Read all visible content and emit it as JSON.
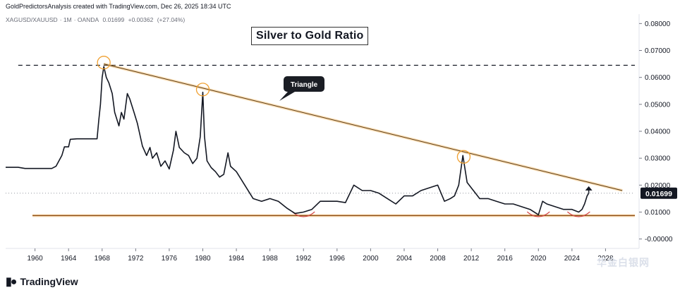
{
  "header": {
    "credit": "GoldPredictorsAnalysis created with TradingView.com, Dec 26, 2025 18:34 UTC"
  },
  "symbol_info": {
    "symbol": "XAGUSD/XAUUSD",
    "interval": "1M",
    "source": "OANDA",
    "price": "0.01699",
    "change": "+0.00362",
    "change_pct": "(+27.04%)"
  },
  "footer": {
    "brand": "TradingView",
    "watermark": "华金白银网"
  },
  "colors": {
    "price_line": "#131722",
    "trend_line": "#f0a030",
    "support_line": "#8a4a12",
    "highlight_circle": "#f0a030",
    "bottom_arc": "#d04040",
    "price_badge_bg": "#131722",
    "grid": "#e0e3eb"
  },
  "chart_data": {
    "type": "line",
    "title": "Silver to Gold Ratio",
    "xlabel": "",
    "ylabel": "",
    "xlim": [
      1956.5,
      2032.0
    ],
    "ylim": [
      -0.0035,
      0.0835
    ],
    "x_ticks": [
      1960,
      1964,
      1968,
      1972,
      1976,
      1980,
      1984,
      1988,
      1992,
      1996,
      2000,
      2004,
      2008,
      2012,
      2016,
      2020,
      2024,
      2028
    ],
    "y_ticks": [
      {
        "value": 0.08,
        "label": "0.08000"
      },
      {
        "value": 0.07,
        "label": "0.07000"
      },
      {
        "value": 0.06,
        "label": "0.06000"
      },
      {
        "value": 0.05,
        "label": "0.05000"
      },
      {
        "value": 0.04,
        "label": "0.04000"
      },
      {
        "value": 0.03,
        "label": "0.03000"
      },
      {
        "value": 0.02,
        "label": "0.02000"
      },
      {
        "value": 0.01,
        "label": "0.01000"
      },
      {
        "value": 0.0,
        "label": "-0.00000"
      }
    ],
    "current_value": 0.01699,
    "current_label": "0.01699",
    "series": [
      {
        "name": "XAGUSD/XAUUSD",
        "points": [
          [
            1956.5,
            0.0266
          ],
          [
            1958.0,
            0.0266
          ],
          [
            1958.8,
            0.0262
          ],
          [
            1960.5,
            0.0262
          ],
          [
            1962.0,
            0.0262
          ],
          [
            1962.5,
            0.027
          ],
          [
            1963.2,
            0.031
          ],
          [
            1963.5,
            0.0342
          ],
          [
            1964.0,
            0.0342
          ],
          [
            1964.2,
            0.037
          ],
          [
            1965.0,
            0.0372
          ],
          [
            1967.0,
            0.0372
          ],
          [
            1967.4,
            0.0372
          ],
          [
            1967.6,
            0.044
          ],
          [
            1967.8,
            0.05
          ],
          [
            1968.0,
            0.06
          ],
          [
            1968.2,
            0.064
          ],
          [
            1968.5,
            0.06
          ],
          [
            1968.8,
            0.058
          ],
          [
            1969.2,
            0.054
          ],
          [
            1969.5,
            0.047
          ],
          [
            1970.0,
            0.042
          ],
          [
            1970.3,
            0.047
          ],
          [
            1970.6,
            0.0445
          ],
          [
            1971.0,
            0.054
          ],
          [
            1971.3,
            0.052
          ],
          [
            1971.8,
            0.047
          ],
          [
            1972.2,
            0.043
          ],
          [
            1972.8,
            0.0345
          ],
          [
            1973.3,
            0.031
          ],
          [
            1973.7,
            0.034
          ],
          [
            1974.0,
            0.03
          ],
          [
            1974.5,
            0.032
          ],
          [
            1975.0,
            0.027
          ],
          [
            1975.5,
            0.029
          ],
          [
            1976.0,
            0.026
          ],
          [
            1976.5,
            0.033
          ],
          [
            1976.8,
            0.04
          ],
          [
            1977.2,
            0.034
          ],
          [
            1977.8,
            0.032
          ],
          [
            1978.3,
            0.031
          ],
          [
            1978.8,
            0.028
          ],
          [
            1979.3,
            0.03
          ],
          [
            1979.7,
            0.038
          ],
          [
            1980.0,
            0.0545
          ],
          [
            1980.2,
            0.038
          ],
          [
            1980.5,
            0.029
          ],
          [
            1981.0,
            0.0265
          ],
          [
            1981.5,
            0.025
          ],
          [
            1982.0,
            0.023
          ],
          [
            1982.5,
            0.024
          ],
          [
            1983.0,
            0.032
          ],
          [
            1983.3,
            0.027
          ],
          [
            1984.0,
            0.025
          ],
          [
            1985.0,
            0.02
          ],
          [
            1986.0,
            0.015
          ],
          [
            1987.0,
            0.014
          ],
          [
            1988.0,
            0.015
          ],
          [
            1989.0,
            0.014
          ],
          [
            1990.0,
            0.0115
          ],
          [
            1991.0,
            0.0095
          ],
          [
            1992.0,
            0.01
          ],
          [
            1993.0,
            0.011
          ],
          [
            1994.0,
            0.014
          ],
          [
            1995.0,
            0.014
          ],
          [
            1996.0,
            0.014
          ],
          [
            1997.0,
            0.0135
          ],
          [
            1998.0,
            0.02
          ],
          [
            1999.0,
            0.018
          ],
          [
            2000.0,
            0.018
          ],
          [
            2001.0,
            0.017
          ],
          [
            2002.0,
            0.015
          ],
          [
            2003.0,
            0.013
          ],
          [
            2004.0,
            0.016
          ],
          [
            2005.0,
            0.016
          ],
          [
            2006.0,
            0.018
          ],
          [
            2007.0,
            0.019
          ],
          [
            2008.0,
            0.02
          ],
          [
            2008.8,
            0.014
          ],
          [
            2009.5,
            0.015
          ],
          [
            2010.0,
            0.016
          ],
          [
            2010.5,
            0.02
          ],
          [
            2011.0,
            0.031
          ],
          [
            2011.5,
            0.021
          ],
          [
            2012.0,
            0.019
          ],
          [
            2013.0,
            0.015
          ],
          [
            2014.0,
            0.015
          ],
          [
            2015.0,
            0.014
          ],
          [
            2016.0,
            0.013
          ],
          [
            2017.0,
            0.013
          ],
          [
            2018.0,
            0.012
          ],
          [
            2019.0,
            0.011
          ],
          [
            2020.0,
            0.009
          ],
          [
            2020.5,
            0.014
          ],
          [
            2021.0,
            0.013
          ],
          [
            2022.0,
            0.012
          ],
          [
            2023.0,
            0.011
          ],
          [
            2024.0,
            0.011
          ],
          [
            2024.8,
            0.01
          ],
          [
            2025.2,
            0.011
          ],
          [
            2025.5,
            0.013
          ],
          [
            2025.8,
            0.016
          ],
          [
            2026.0,
            0.017
          ]
        ]
      }
    ],
    "annotations": {
      "triangle_label": "Triangle",
      "resistance_line": [
        [
          1968.2,
          0.065
        ],
        [
          2030.0,
          0.018
        ]
      ],
      "support_line": [
        [
          1959.7,
          0.0087
        ],
        [
          2031.5,
          0.0087
        ]
      ],
      "dashed_high_line": [
        [
          1958.0,
          0.0645
        ],
        [
          2031.5,
          0.0645
        ]
      ],
      "dotted_current_line": [
        [
          1956.5,
          0.01699
        ],
        [
          2031.5,
          0.01699
        ]
      ],
      "peak_circles": [
        [
          1968.2,
          0.0655
        ],
        [
          1980.0,
          0.0555
        ],
        [
          2011.1,
          0.0305
        ]
      ],
      "bottom_arcs": [
        [
          1992.0,
          0.0088
        ],
        [
          2020.0,
          0.0088
        ],
        [
          2024.8,
          0.0088
        ]
      ],
      "arrow": [
        [
          2026.0,
          0.017
        ],
        [
          2026.0,
          0.0196
        ]
      ]
    }
  }
}
